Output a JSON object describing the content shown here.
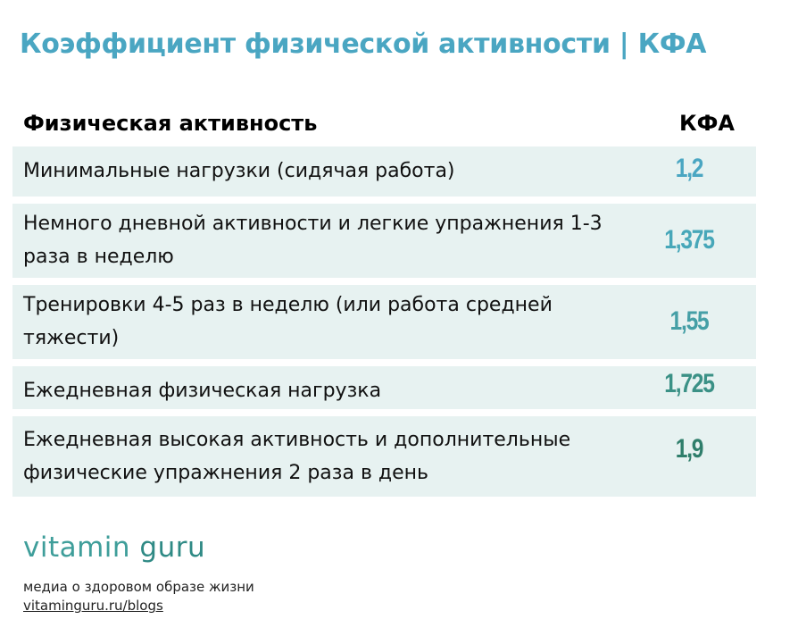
{
  "title": "Коэффициент физической активности | КФА",
  "table": {
    "headers": {
      "activity": "Физическая активность",
      "kfa": "КФА"
    },
    "rows": [
      {
        "label": "Минимальные нагрузки (сидячая работа)",
        "value": "1,2",
        "color": "#4aa6c2"
      },
      {
        "label": "Немного дневной активности и легкие упражнения 1-3 раза в неделю",
        "value": "1,375",
        "color": "#47a7b9"
      },
      {
        "label": "Тренировки 4-5 раз в неделю (или работа средней тяжести)",
        "value": "1,55",
        "color": "#459fa6"
      },
      {
        "label": "Ежедневная физическая нагрузка",
        "value": "1,725",
        "color": "#3b9186"
      },
      {
        "label": "Ежедневная высокая активность и дополнительные физические упражнения 2 раза в день",
        "value": "1,9",
        "color": "#2f7e6b"
      }
    ]
  },
  "footer": {
    "logo_part1": "vitamin ",
    "logo_part2": "guru",
    "tagline": "медиа о здоровом образе жизни",
    "link": "vitaminguru.ru/blogs"
  }
}
